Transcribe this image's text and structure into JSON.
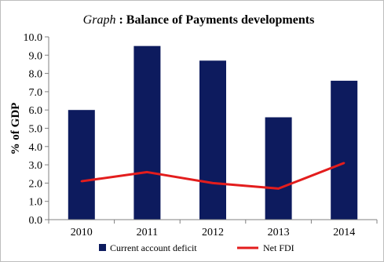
{
  "chart_data": {
    "type": "bar",
    "title_italic": "Graph",
    "title_rest": " : Balance of Payments developments",
    "xlabel": "",
    "ylabel": "% of GDP",
    "ylim": [
      0,
      10
    ],
    "y_ticks": [
      "0.0",
      "1.0",
      "2.0",
      "3.0",
      "4.0",
      "5.0",
      "6.0",
      "7.0",
      "8.0",
      "9.0",
      "10.0"
    ],
    "categories": [
      "2010",
      "2011",
      "2012",
      "2013",
      "2014"
    ],
    "grid": false,
    "legend_position": "bottom",
    "series": [
      {
        "name": "Current account deficit",
        "type": "bar",
        "color": "#0d1b5e",
        "values": [
          6.0,
          9.5,
          8.7,
          5.6,
          7.6
        ]
      },
      {
        "name": "Net FDI",
        "type": "line",
        "color": "#e31d1d",
        "values": [
          2.1,
          2.6,
          2.0,
          1.7,
          3.1
        ]
      }
    ]
  }
}
